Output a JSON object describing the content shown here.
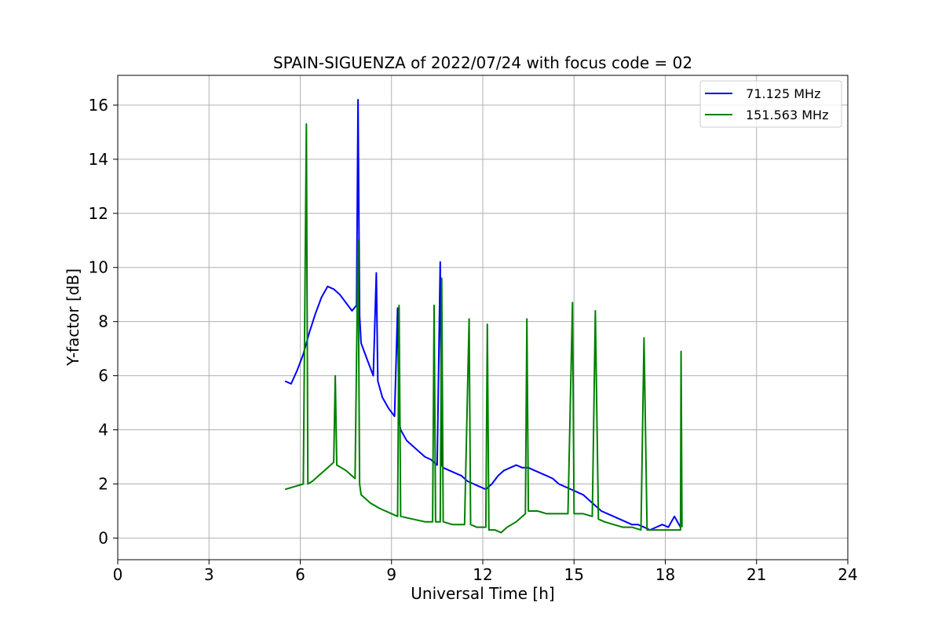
{
  "chart_data": {
    "type": "line",
    "title": "SPAIN-SIGUENZA of 2022/07/24 with focus code = 02",
    "xlabel": "Universal Time [h]",
    "ylabel": "Y-factor [dB]",
    "xlim": [
      0,
      24
    ],
    "ylim": [
      -0.8,
      17.1
    ],
    "xticks": [
      0,
      3,
      6,
      9,
      12,
      15,
      18,
      21,
      24
    ],
    "yticks": [
      0,
      2,
      4,
      6,
      8,
      10,
      12,
      14,
      16
    ],
    "grid": true,
    "legend_position": "top-right",
    "series": [
      {
        "name": "  71.125 MHz",
        "color": "#0000ff",
        "x": [
          5.5,
          5.7,
          5.9,
          6.1,
          6.3,
          6.5,
          6.7,
          6.9,
          7.1,
          7.3,
          7.5,
          7.7,
          7.85,
          7.9,
          7.95,
          8.0,
          8.2,
          8.4,
          8.5,
          8.55,
          8.7,
          8.9,
          9.1,
          9.2,
          9.25,
          9.3,
          9.5,
          9.7,
          9.9,
          10.1,
          10.3,
          10.5,
          10.6,
          10.65,
          10.7,
          10.9,
          11.1,
          11.3,
          11.5,
          11.7,
          11.9,
          12.1,
          12.3,
          12.5,
          12.7,
          12.9,
          13.1,
          13.3,
          13.5,
          13.7,
          13.9,
          14.1,
          14.3,
          14.5,
          14.7,
          14.9,
          15.1,
          15.3,
          15.5,
          15.7,
          15.9,
          16.1,
          16.3,
          16.5,
          16.7,
          16.9,
          17.1,
          17.3,
          17.5,
          17.7,
          17.9,
          18.1,
          18.3,
          18.5
        ],
        "y": [
          5.8,
          5.7,
          6.2,
          6.8,
          7.6,
          8.3,
          8.9,
          9.3,
          9.2,
          9.0,
          8.7,
          8.4,
          8.6,
          16.2,
          8.2,
          7.2,
          6.6,
          6.0,
          9.8,
          5.8,
          5.2,
          4.8,
          4.5,
          8.5,
          4.3,
          4.0,
          3.6,
          3.4,
          3.2,
          3.0,
          2.9,
          2.7,
          10.2,
          2.7,
          2.6,
          2.5,
          2.4,
          2.3,
          2.1,
          2.0,
          1.9,
          1.8,
          2.0,
          2.3,
          2.5,
          2.6,
          2.7,
          2.6,
          2.6,
          2.5,
          2.4,
          2.3,
          2.2,
          2.0,
          1.9,
          1.8,
          1.7,
          1.6,
          1.4,
          1.2,
          1.0,
          0.9,
          0.8,
          0.7,
          0.6,
          0.5,
          0.5,
          0.4,
          0.3,
          0.4,
          0.5,
          0.4,
          0.8,
          0.4
        ]
      },
      {
        "name": "151.563 MHz",
        "color": "#008000",
        "x": [
          5.5,
          5.8,
          6.1,
          6.2,
          6.25,
          6.4,
          6.7,
          7.0,
          7.1,
          7.15,
          7.2,
          7.5,
          7.8,
          7.9,
          7.95,
          8.0,
          8.3,
          8.6,
          9.0,
          9.2,
          9.25,
          9.3,
          9.7,
          10.1,
          10.35,
          10.4,
          10.45,
          10.6,
          10.65,
          10.7,
          11.0,
          11.4,
          11.55,
          11.6,
          11.8,
          12.1,
          12.15,
          12.2,
          12.4,
          12.6,
          12.8,
          13.1,
          13.4,
          13.45,
          13.5,
          13.8,
          14.1,
          14.4,
          14.8,
          14.95,
          15.0,
          15.3,
          15.6,
          15.7,
          15.8,
          16.0,
          16.3,
          16.6,
          16.9,
          17.2,
          17.3,
          17.4,
          17.7,
          18.0,
          18.3,
          18.5,
          18.52,
          18.55
        ],
        "y": [
          1.8,
          1.9,
          2.0,
          15.3,
          2.0,
          2.1,
          2.4,
          2.7,
          2.8,
          6.0,
          2.7,
          2.5,
          2.2,
          11.0,
          2.0,
          1.6,
          1.3,
          1.1,
          0.9,
          0.8,
          8.6,
          0.8,
          0.7,
          0.6,
          0.6,
          8.6,
          0.6,
          0.6,
          9.6,
          0.6,
          0.5,
          0.5,
          8.1,
          0.5,
          0.4,
          0.4,
          7.9,
          0.3,
          0.3,
          0.2,
          0.4,
          0.6,
          0.9,
          8.1,
          1.0,
          1.0,
          0.9,
          0.9,
          0.9,
          8.7,
          0.9,
          0.9,
          0.8,
          8.4,
          0.7,
          0.6,
          0.5,
          0.4,
          0.4,
          0.3,
          7.4,
          0.3,
          0.3,
          0.3,
          0.3,
          0.3,
          6.9,
          0.4
        ]
      }
    ]
  }
}
